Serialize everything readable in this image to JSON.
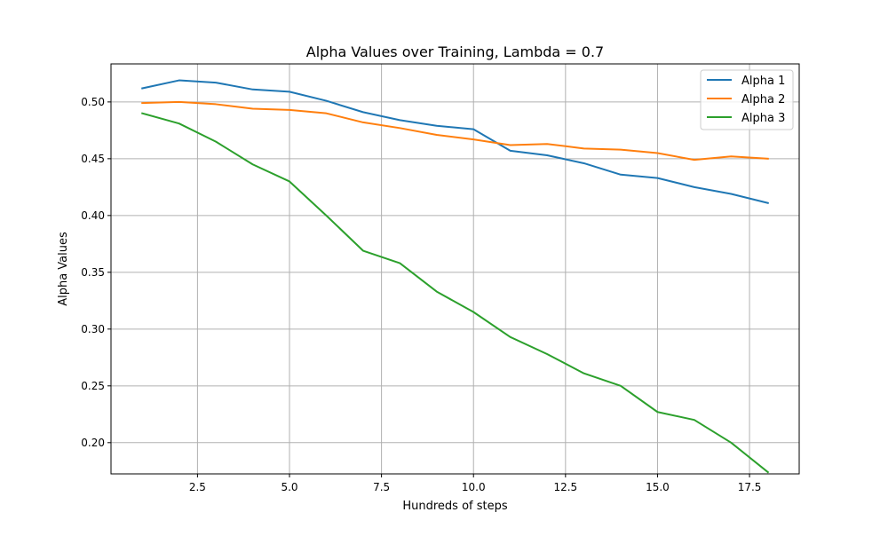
{
  "chart_data": {
    "type": "line",
    "title": "Alpha Values over Training, Lambda = 0.7",
    "xlabel": "Hundreds of steps",
    "ylabel": "Alpha Values",
    "xlim": [
      0.15,
      18.85
    ],
    "ylim": [
      0.1725,
      0.5335
    ],
    "xticks": [
      2.5,
      5.0,
      7.5,
      10.0,
      12.5,
      15.0,
      17.5
    ],
    "xtick_labels": [
      "2.5",
      "5.0",
      "7.5",
      "10.0",
      "12.5",
      "15.0",
      "17.5"
    ],
    "yticks": [
      0.2,
      0.25,
      0.3,
      0.35,
      0.4,
      0.45,
      0.5
    ],
    "ytick_labels": [
      "0.20",
      "0.25",
      "0.30",
      "0.35",
      "0.40",
      "0.45",
      "0.50"
    ],
    "grid": true,
    "legend_position": "top-right",
    "x": [
      1,
      2,
      3,
      4,
      5,
      6,
      7,
      8,
      9,
      10,
      11,
      12,
      13,
      14,
      15,
      16,
      17,
      18
    ],
    "series": [
      {
        "name": "Alpha 1",
        "color": "#1f77b4",
        "values": [
          0.512,
          0.519,
          0.517,
          0.511,
          0.509,
          0.501,
          0.491,
          0.484,
          0.479,
          0.476,
          0.457,
          0.453,
          0.446,
          0.436,
          0.433,
          0.425,
          0.419,
          0.411
        ]
      },
      {
        "name": "Alpha 2",
        "color": "#ff7f0e",
        "values": [
          0.499,
          0.5,
          0.498,
          0.494,
          0.493,
          0.49,
          0.482,
          0.477,
          0.471,
          0.467,
          0.462,
          0.463,
          0.459,
          0.458,
          0.455,
          0.449,
          0.452,
          0.45
        ]
      },
      {
        "name": "Alpha 3",
        "color": "#2ca02c",
        "values": [
          0.49,
          0.481,
          0.465,
          0.445,
          0.43,
          0.4,
          0.369,
          0.358,
          0.333,
          0.315,
          0.293,
          0.278,
          0.261,
          0.25,
          0.227,
          0.22,
          0.2,
          0.174
        ]
      }
    ]
  }
}
